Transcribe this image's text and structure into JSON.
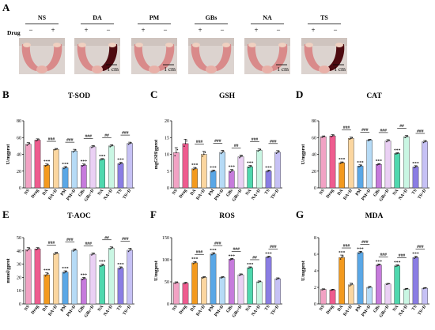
{
  "panel_a": {
    "letter": "A",
    "drug_label": "Drug",
    "groups": [
      {
        "name": "NS",
        "signs": [
          "−",
          "+"
        ],
        "scale": ""
      },
      {
        "name": "DA",
        "signs": [
          "+",
          "−"
        ],
        "scale": "1 cm"
      },
      {
        "name": "PM",
        "signs": [
          "+",
          "−"
        ],
        "scale": "1 cm"
      },
      {
        "name": "GBs",
        "signs": [
          "+",
          "−"
        ],
        "scale": ""
      },
      {
        "name": "NA",
        "signs": [
          "+",
          "−"
        ],
        "scale": "1 cm"
      },
      {
        "name": "TS",
        "signs": [
          "+",
          "−"
        ],
        "scale": "1 cm"
      }
    ]
  },
  "palette": [
    "#f2a2c4",
    "#ee5c8f",
    "#f39a1e",
    "#fbd6a0",
    "#5aa7e6",
    "#b6dbf6",
    "#c67bdc",
    "#ead0f4",
    "#4fd8ae",
    "#c9f6e3",
    "#8a7de3",
    "#c6c1f5"
  ],
  "categories": [
    "NS",
    "Drug",
    "DA",
    "DA+D",
    "PM",
    "PM+D",
    "GBs",
    "GBs+D",
    "NA",
    "NA+D",
    "TS",
    "TS+D"
  ],
  "chart_data": [
    {
      "letter": "B",
      "type": "bar",
      "title": "T-SOD",
      "ylabel": "U/mgprot",
      "ylim": [
        0,
        80
      ],
      "yticks": [
        0,
        20,
        40,
        60,
        80
      ],
      "values": [
        52,
        57,
        27,
        46,
        24,
        44,
        27,
        49,
        34,
        50,
        29,
        53
      ],
      "errors": [
        2,
        1.5,
        1.5,
        1,
        1.5,
        2,
        1.5,
        1.5,
        1,
        1.5,
        1.5,
        1.5
      ],
      "stars": [
        "",
        "",
        "***",
        "",
        "***",
        "",
        "***",
        "",
        "***",
        "",
        "***",
        ""
      ],
      "hash": [
        {
          "pair": [
            2,
            3
          ],
          "label": "###"
        },
        {
          "pair": [
            4,
            5
          ],
          "label": "###"
        },
        {
          "pair": [
            6,
            7
          ],
          "label": "###"
        },
        {
          "pair": [
            8,
            9
          ],
          "label": "##"
        },
        {
          "pair": [
            10,
            11
          ],
          "label": "###"
        }
      ]
    },
    {
      "letter": "C",
      "type": "bar",
      "title": "GSH",
      "ylabel": "mgGSH/gprot",
      "ylim": [
        0,
        20
      ],
      "yticks": [
        0,
        5,
        10,
        15,
        20
      ],
      "values": [
        10.5,
        13.2,
        5.7,
        10.0,
        5.0,
        10.6,
        5.0,
        9.3,
        6.3,
        11.2,
        5.0,
        10.6
      ],
      "errors": [
        1.5,
        1.3,
        0.4,
        0.9,
        0.3,
        0.6,
        0.5,
        0.5,
        0.4,
        0.4,
        0.3,
        0.5
      ],
      "stars": [
        "",
        "",
        "***",
        "",
        "***",
        "",
        "***",
        "",
        "***",
        "",
        "***",
        ""
      ],
      "hash": [
        {
          "pair": [
            2,
            3
          ],
          "label": "###"
        },
        {
          "pair": [
            4,
            5
          ],
          "label": "###"
        },
        {
          "pair": [
            6,
            7
          ],
          "label": "##"
        },
        {
          "pair": [
            8,
            9
          ],
          "label": "###"
        },
        {
          "pair": [
            10,
            11
          ],
          "label": "###"
        }
      ]
    },
    {
      "letter": "D",
      "type": "bar",
      "title": "CAT",
      "ylabel": "U/mgprot",
      "ylim": [
        0,
        80
      ],
      "yticks": [
        0,
        20,
        40,
        60,
        80
      ],
      "values": [
        61,
        62,
        30,
        59,
        26,
        57,
        28,
        56,
        41,
        61,
        25,
        55
      ],
      "errors": [
        1,
        1.5,
        1,
        1.5,
        1.5,
        1,
        1,
        1.5,
        1,
        1.5,
        1.5,
        1.5
      ],
      "stars": [
        "",
        "",
        "***",
        "",
        "***",
        "",
        "***",
        "",
        "***",
        "",
        "***",
        ""
      ],
      "hash": [
        {
          "pair": [
            2,
            3
          ],
          "label": "###"
        },
        {
          "pair": [
            4,
            5
          ],
          "label": "###"
        },
        {
          "pair": [
            6,
            7
          ],
          "label": "###"
        },
        {
          "pair": [
            8,
            9
          ],
          "label": "##"
        },
        {
          "pair": [
            10,
            11
          ],
          "label": "###"
        }
      ]
    },
    {
      "letter": "E",
      "type": "bar",
      "title": "T-AOC",
      "ylabel": "mmol/gprot",
      "ylim": [
        0,
        50
      ],
      "yticks": [
        0,
        10,
        20,
        30,
        40,
        50
      ],
      "values": [
        41,
        41.5,
        22,
        38,
        24,
        40.5,
        19,
        37.5,
        29,
        42,
        27,
        40.5
      ],
      "errors": [
        1.5,
        1,
        1.5,
        1,
        1,
        1,
        1,
        1,
        1,
        1,
        1,
        1.5
      ],
      "stars": [
        "",
        "",
        "***",
        "",
        "***",
        "",
        "***",
        "",
        "***",
        "",
        "***",
        ""
      ],
      "hash": [
        {
          "pair": [
            2,
            3
          ],
          "label": "###"
        },
        {
          "pair": [
            4,
            5
          ],
          "label": "###"
        },
        {
          "pair": [
            6,
            7
          ],
          "label": "###"
        },
        {
          "pair": [
            8,
            9
          ],
          "label": "##"
        },
        {
          "pair": [
            10,
            11
          ],
          "label": "###"
        }
      ]
    },
    {
      "letter": "F",
      "type": "bar",
      "title": "ROS",
      "ylabel": "U/mgprot",
      "ylim": [
        0,
        150
      ],
      "yticks": [
        0,
        50,
        100,
        150
      ],
      "values": [
        48,
        47,
        93,
        60,
        113,
        60,
        101,
        66,
        82,
        50,
        106,
        57
      ],
      "errors": [
        2,
        2,
        3,
        2,
        3,
        2,
        2,
        2,
        2,
        2,
        2,
        2
      ],
      "stars": [
        "",
        "",
        "***",
        "",
        "***",
        "",
        "***",
        "",
        "***",
        "",
        "***",
        ""
      ],
      "hash": [
        {
          "pair": [
            2,
            3
          ],
          "label": "###"
        },
        {
          "pair": [
            4,
            5
          ],
          "label": "###"
        },
        {
          "pair": [
            6,
            7
          ],
          "label": "###"
        },
        {
          "pair": [
            8,
            9
          ],
          "label": "##"
        },
        {
          "pair": [
            10,
            11
          ],
          "label": "###"
        }
      ]
    },
    {
      "letter": "G",
      "type": "bar",
      "title": "MDA",
      "ylabel": "U/mgprot",
      "ylim": [
        0,
        8
      ],
      "yticks": [
        0,
        2,
        4,
        6,
        8
      ],
      "values": [
        1.75,
        1.7,
        5.6,
        2.3,
        6.2,
        2.0,
        4.7,
        2.4,
        4.6,
        1.8,
        5.6,
        1.9
      ],
      "errors": [
        0.08,
        0.08,
        0.3,
        0.2,
        0.15,
        0.12,
        0.12,
        0.08,
        0.12,
        0.08,
        0.15,
        0.08
      ],
      "stars": [
        "",
        "",
        "***",
        "",
        "***",
        "",
        "***",
        "",
        "***",
        "",
        "***",
        ""
      ],
      "hash": [
        {
          "pair": [
            2,
            3
          ],
          "label": "###"
        },
        {
          "pair": [
            4,
            5
          ],
          "label": "###"
        },
        {
          "pair": [
            6,
            7
          ],
          "label": "###"
        },
        {
          "pair": [
            8,
            9
          ],
          "label": "###"
        },
        {
          "pair": [
            10,
            11
          ],
          "label": "###"
        }
      ]
    }
  ]
}
